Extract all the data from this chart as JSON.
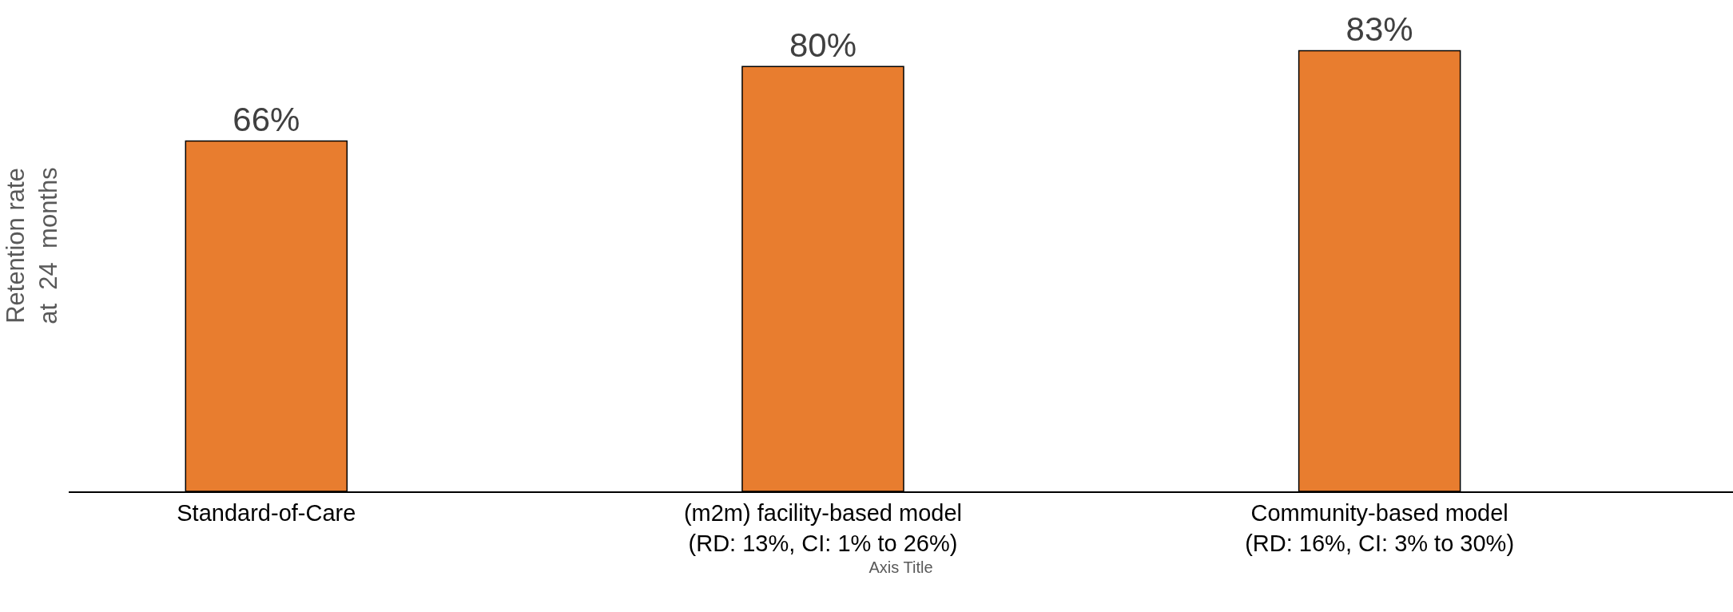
{
  "chart_data": {
    "type": "bar",
    "categories": [
      "Standard-of-Care",
      "(m2m) facility-based model\n(RD: 13%, CI: 1% to 26%)",
      "Community-based model\n(RD: 16%, CI: 3% to 30%)"
    ],
    "values": [
      66,
      80,
      83
    ],
    "color": "#e87d2f",
    "value_labels": [
      "66%",
      "80%",
      "83%"
    ],
    "xlabel": "Axis Title",
    "ylabel": "Retention rate\nat  24  months",
    "grid": false,
    "legend": false
  }
}
